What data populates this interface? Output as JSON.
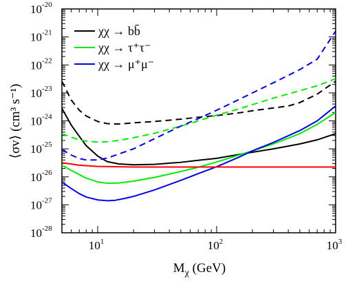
{
  "chart_data": {
    "type": "line",
    "title": "",
    "xlabel": "M",
    "xlabel_sub": "χ",
    "xlabel_unit": " (GeV)",
    "ylabel": "⟨σv⟩ (cm³ s⁻¹)",
    "xscale": "log",
    "yscale": "log",
    "xlim": [
      5,
      1000
    ],
    "ylim": [
      1e-28,
      1e-20
    ],
    "x_ticks": [
      {
        "value": 10,
        "base": "10",
        "exp": "1"
      },
      {
        "value": 100,
        "base": "10",
        "exp": "2"
      },
      {
        "value": 1000,
        "base": "10",
        "exp": "3"
      }
    ],
    "y_ticks": [
      {
        "value": 1e-28,
        "base": "10",
        "exp": "-28"
      },
      {
        "value": 1e-27,
        "base": "10",
        "exp": "-27"
      },
      {
        "value": 1e-26,
        "base": "10",
        "exp": "-26"
      },
      {
        "value": 1e-25,
        "base": "10",
        "exp": "-25"
      },
      {
        "value": 1e-24,
        "base": "10",
        "exp": "-24"
      },
      {
        "value": 1e-23,
        "base": "10",
        "exp": "-23"
      },
      {
        "value": 1e-22,
        "base": "10",
        "exp": "-22"
      },
      {
        "value": 1e-21,
        "base": "10",
        "exp": "-21"
      },
      {
        "value": 1e-20,
        "base": "10",
        "exp": "-20"
      }
    ],
    "legend": {
      "placement": "top-left",
      "entries": [
        {
          "label": "χχ → bb̄",
          "color": "#000000"
        },
        {
          "label": "χχ → τ⁺τ⁻",
          "color": "#00ee00"
        },
        {
          "label": "χχ → μ⁺μ⁻",
          "color": "#0000ee"
        }
      ]
    },
    "series": [
      {
        "color": "#000000",
        "dash": false,
        "x": [
          5,
          6,
          7,
          8,
          10,
          12,
          15,
          20,
          30,
          50,
          70,
          100,
          150,
          200,
          300,
          500,
          700,
          1000
        ],
        "y": [
          2.8e-24,
          7e-25,
          2.8e-25,
          1.3e-25,
          5.5e-26,
          3.5e-26,
          2.9e-26,
          2.7e-26,
          2.8e-26,
          3.3e-26,
          3.9e-26,
          4.6e-26,
          6.2e-26,
          7.6e-26,
          1e-25,
          1.5e-25,
          2.1e-25,
          3.5e-25
        ]
      },
      {
        "color": "#000000",
        "dash": true,
        "x": [
          5,
          6,
          7,
          8,
          10,
          12,
          15,
          20,
          30,
          50,
          70,
          100,
          150,
          200,
          300,
          400,
          500,
          700,
          1000
        ],
        "y": [
          2.6e-23,
          5.5e-24,
          2.4e-24,
          1.5e-24,
          9.5e-25,
          8e-25,
          7.7e-25,
          8.5e-25,
          9.5e-25,
          1.15e-24,
          1.35e-24,
          1.55e-24,
          1.9e-24,
          2.3e-24,
          2.9e-24,
          3.4e-24,
          4.5e-24,
          9e-24,
          2.6e-23
        ]
      },
      {
        "color": "#00ee00",
        "dash": false,
        "x": [
          5,
          6,
          7,
          8,
          10,
          12,
          15,
          20,
          30,
          50,
          70,
          100,
          150,
          200,
          300,
          500,
          700,
          1000
        ],
        "y": [
          2.6e-26,
          1.7e-26,
          1.2e-26,
          9e-27,
          6.6e-27,
          5.9e-27,
          6e-27,
          7e-27,
          9.5e-27,
          1.55e-26,
          2.2e-26,
          3.4e-26,
          5.8e-26,
          8.5e-26,
          1.5e-25,
          3.5e-25,
          7.5e-25,
          2e-24
        ]
      },
      {
        "color": "#00ee00",
        "dash": true,
        "x": [
          5,
          6,
          7,
          8,
          10,
          12,
          15,
          20,
          30,
          50,
          70,
          100,
          150,
          200,
          300,
          500,
          700,
          1000
        ],
        "y": [
          3.5e-25,
          2.6e-25,
          2.1e-25,
          1.9e-25,
          1.75e-25,
          1.8e-25,
          2e-25,
          2.5e-25,
          3.6e-25,
          6.5e-25,
          1e-24,
          1.6e-24,
          2.6e-24,
          3.8e-24,
          6.5e-24,
          1.2e-23,
          1.8e-23,
          3.2e-23
        ]
      },
      {
        "color": "#0000ee",
        "dash": false,
        "x": [
          5,
          6,
          7,
          8,
          10,
          12,
          14,
          17,
          20,
          30,
          50,
          70,
          100,
          150,
          200,
          300,
          500,
          700,
          1000
        ],
        "y": [
          6.5e-27,
          3.8e-27,
          2.5e-27,
          1.9e-27,
          1.5e-27,
          1.4e-27,
          1.45e-27,
          1.7e-27,
          2e-27,
          3.4e-27,
          7.5e-27,
          1.3e-26,
          2.3e-26,
          4.8e-26,
          8.5e-26,
          1.7e-25,
          4.5e-25,
          1e-24,
          3.4e-24
        ]
      },
      {
        "color": "#0000ee",
        "dash": true,
        "x": [
          5,
          6,
          7,
          8,
          10,
          12,
          15,
          20,
          30,
          50,
          70,
          100,
          150,
          200,
          300,
          500,
          700,
          1000
        ],
        "y": [
          9.5e-26,
          6e-26,
          4.5e-26,
          4e-26,
          4e-26,
          4.7e-26,
          6.5e-26,
          1e-25,
          2.3e-25,
          6.5e-25,
          1.2e-24,
          2.4e-24,
          5.5e-24,
          1e-23,
          2.3e-23,
          6.8e-23,
          1.6e-22,
          1.6e-21
        ]
      },
      {
        "color": "#ff0000",
        "dash": false,
        "x": [
          5,
          7,
          10,
          20,
          50,
          100,
          300,
          1000
        ],
        "y": [
          3.2e-26,
          2.6e-26,
          2.35e-26,
          2.25e-26,
          2.25e-26,
          2.25e-26,
          2.25e-26,
          2.25e-26
        ]
      }
    ]
  }
}
